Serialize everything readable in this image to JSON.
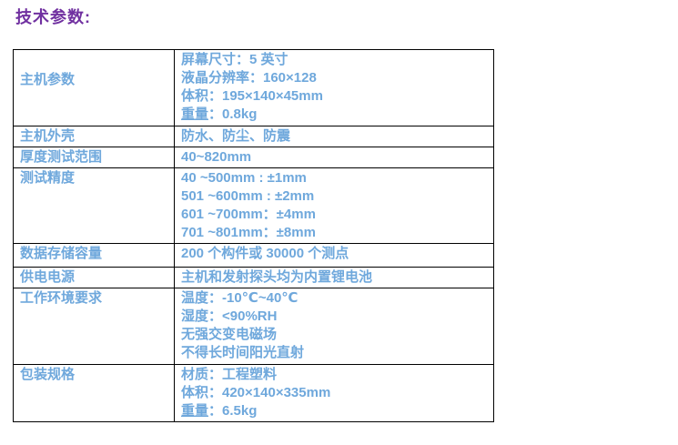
{
  "title": "技术参数:",
  "colors": {
    "title": "#7030A0",
    "text": "#6FA8DC",
    "border": "#000000"
  },
  "table": {
    "rows": [
      {
        "label": "主机参数",
        "lines": [
          "屏幕尺寸：5 英寸",
          "液晶分辨率：160×128",
          "体积：195×140×45mm"
        ],
        "underlined_term": "重量",
        "underlined_term_rest": "：0.8kg"
      },
      {
        "label": "主机外壳",
        "lines": [
          "防水、防尘、防震"
        ]
      },
      {
        "label": "厚度测试范围",
        "lines": [
          "40~820mm"
        ]
      },
      {
        "label": "测试精度",
        "lines": [
          "40 ~500mm : ±1mm",
          "501 ~600mm : ±2mm",
          "601 ~700mm：±4mm",
          "701 ~801mm：±8mm"
        ]
      },
      {
        "label": "数据存储容量",
        "lines": [
          "200 个构件或 30000 个测点"
        ]
      },
      {
        "label": "供电电源",
        "lines": [
          "主机和发射探头均为内置锂电池"
        ]
      },
      {
        "label": "工作环境要求",
        "lines": [
          "温度：-10℃~40℃",
          "湿度：<90%RH",
          "无强交变电磁场",
          "不得长时间阳光直射"
        ]
      },
      {
        "label": "包装规格",
        "lines": [
          "材质：工程塑料",
          "体积：420×140×335mm"
        ],
        "underlined_term": "重量",
        "underlined_term_rest": "：6.5kg"
      }
    ]
  }
}
